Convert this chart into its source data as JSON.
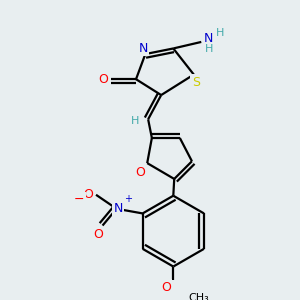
{
  "bg_color": "#e8eef0",
  "atom_colors": {
    "C": "#000000",
    "N": "#0000cd",
    "O": "#ff0000",
    "S": "#cccc00",
    "H": "#44aaaa"
  },
  "bond_color": "#000000",
  "line_width": 1.6
}
